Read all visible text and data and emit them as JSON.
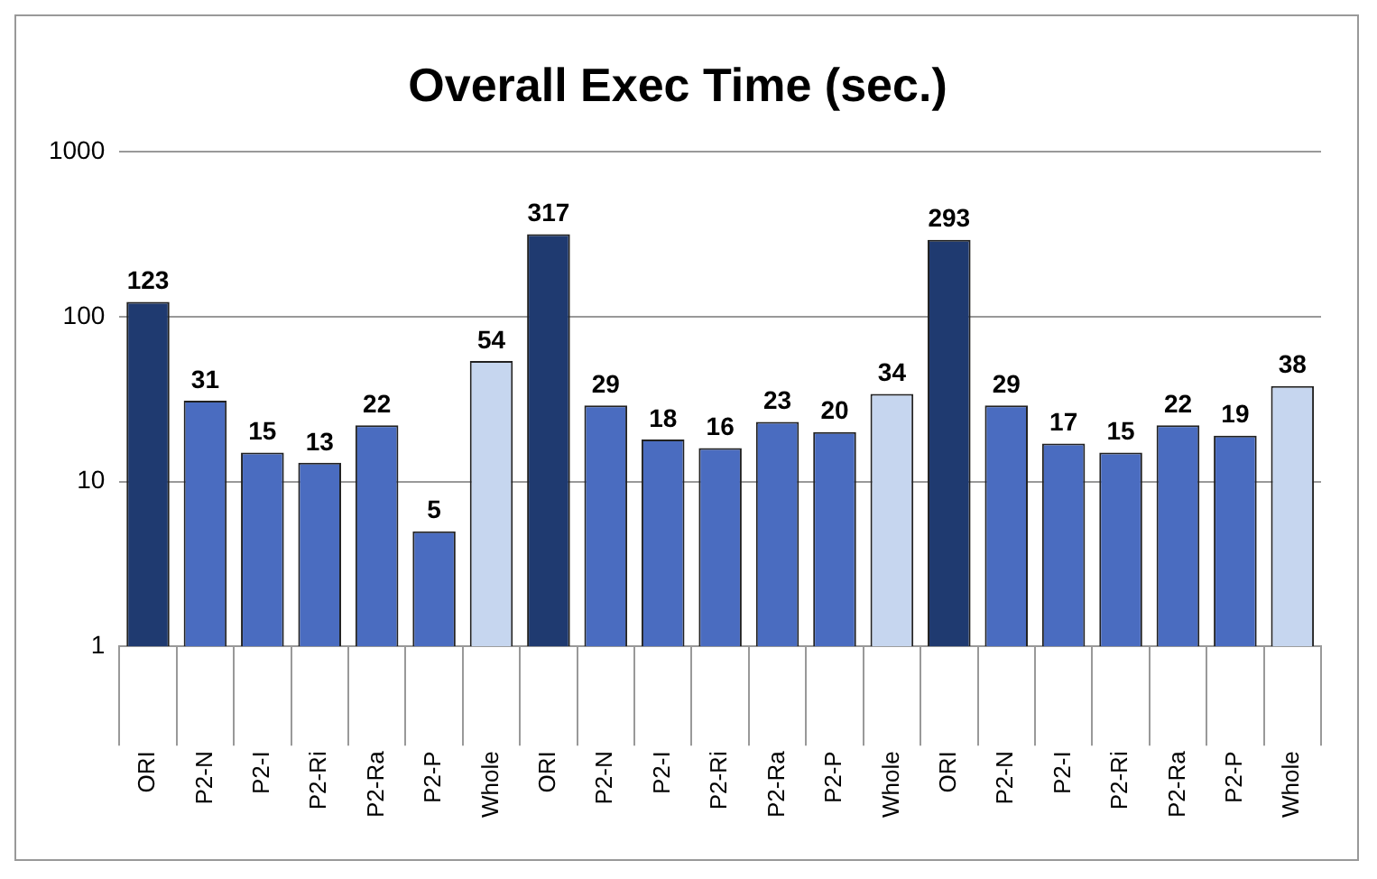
{
  "chart_data": {
    "type": "bar",
    "title": "Overall Exec Time (sec.)",
    "categories": [
      "ORI",
      "P2-N",
      "P2-I",
      "P2-Ri",
      "P2-Ra",
      "P2-P",
      "Whole",
      "ORI",
      "P2-N",
      "P2-I",
      "P2-Ri",
      "P2-Ra",
      "P2-P",
      "Whole",
      "ORI",
      "P2-N",
      "P2-I",
      "P2-Ri",
      "P2-Ra",
      "P2-P",
      "Whole"
    ],
    "values": [
      123,
      31,
      15,
      13,
      22,
      5,
      54,
      317,
      29,
      18,
      16,
      23,
      20,
      34,
      293,
      29,
      17,
      15,
      22,
      19,
      38
    ],
    "colors": [
      "#1f3a70",
      "#4a6cc0",
      "#4a6cc0",
      "#4a6cc0",
      "#4a6cc0",
      "#4a6cc0",
      "#c6d6ef",
      "#1f3a70",
      "#4a6cc0",
      "#4a6cc0",
      "#4a6cc0",
      "#4a6cc0",
      "#4a6cc0",
      "#c6d6ef",
      "#1f3a70",
      "#4a6cc0",
      "#4a6cc0",
      "#4a6cc0",
      "#4a6cc0",
      "#4a6cc0",
      "#c6d6ef"
    ],
    "ylim": [
      1,
      1000
    ],
    "yticks": [
      1,
      10,
      100,
      1000
    ],
    "log": true,
    "grid": "y",
    "legend": false,
    "data_labels": true
  }
}
